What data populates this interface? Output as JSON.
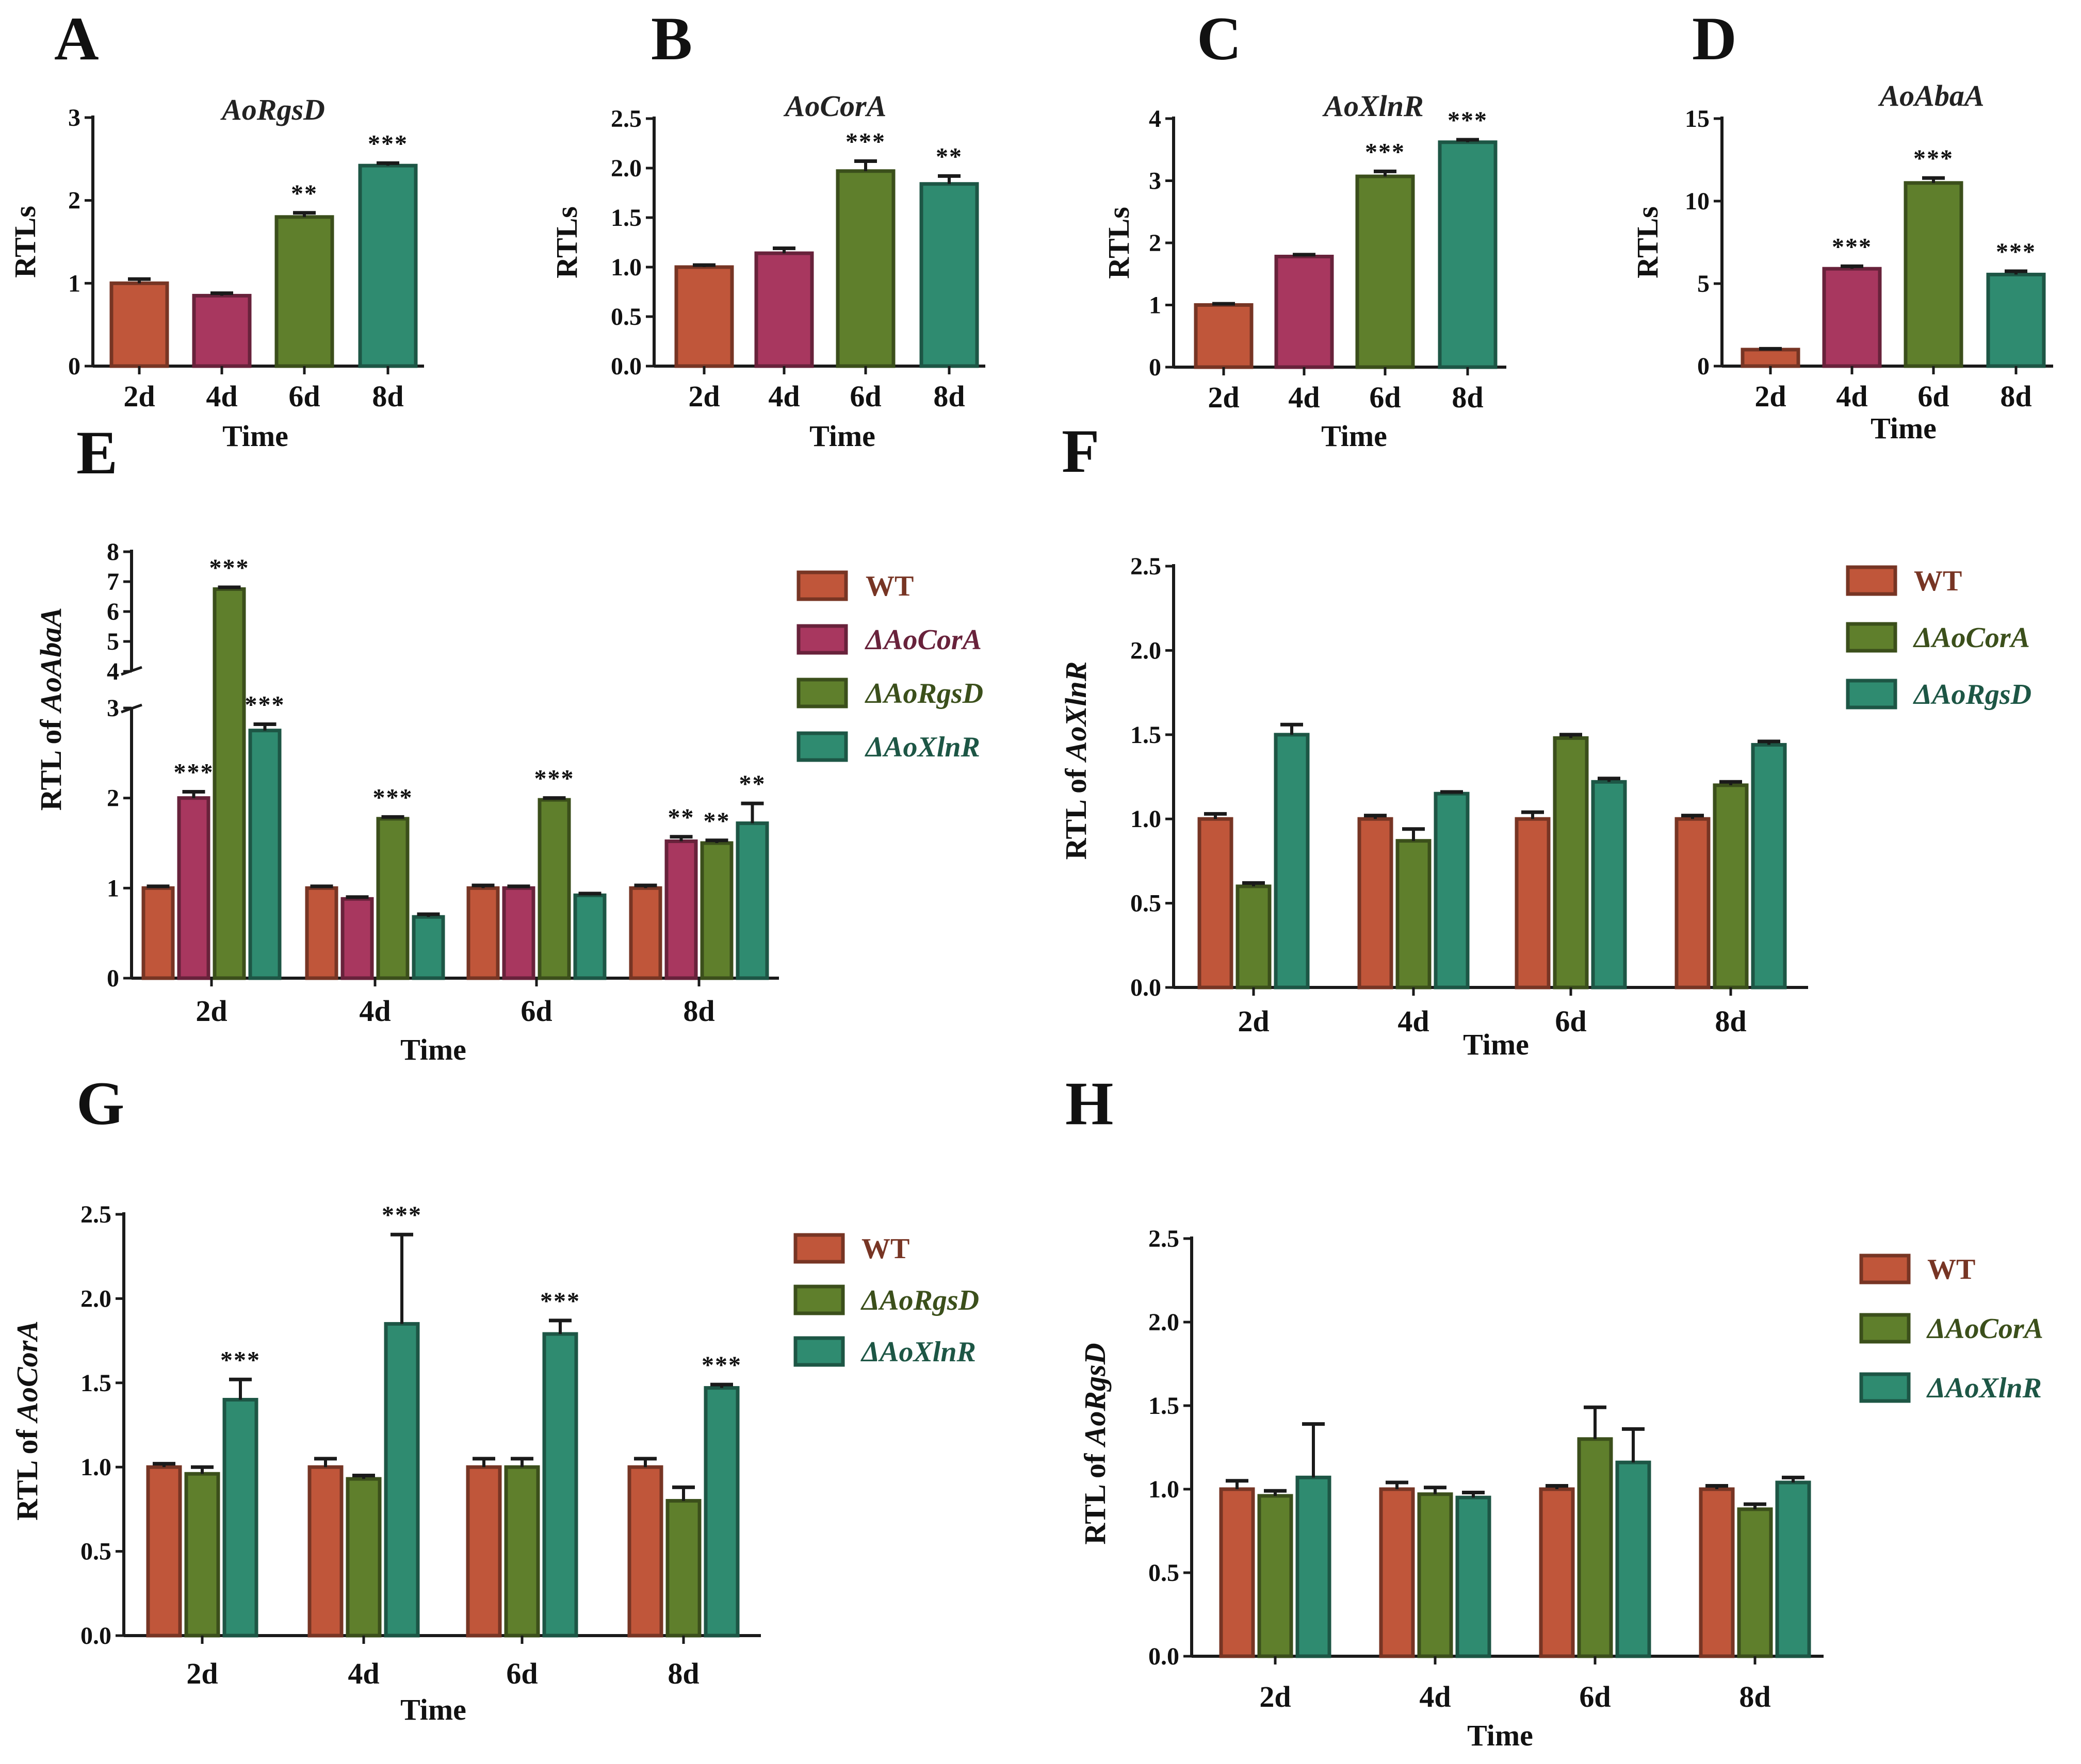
{
  "colors": {
    "WT": "#c0563a",
    "AoCorA_mutant": "#a8375f",
    "AoRgsD_mutant": "#5f7f2c",
    "AoXlnR_mutant": "#2f8b70",
    "axis": "#1a1a1a"
  },
  "chart_data": [
    {
      "id": "A",
      "panel_label": "A",
      "type": "bar",
      "title": "AoRgsD",
      "xlabel": "Time",
      "ylabel": "RTLs",
      "categories": [
        "2d",
        "4d",
        "6d",
        "8d"
      ],
      "ylim": [
        0,
        3
      ],
      "yticks": [
        "0",
        "1",
        "2",
        "3"
      ],
      "values": [
        1.0,
        0.85,
        1.8,
        2.42
      ],
      "errors": [
        0.05,
        0.03,
        0.05,
        0.03
      ],
      "sig": [
        "",
        "",
        "**",
        "***"
      ],
      "bar_colors": [
        "WT",
        "AoCorA_mutant",
        "AoRgsD_mutant",
        "AoXlnR_mutant"
      ]
    },
    {
      "id": "B",
      "panel_label": "B",
      "type": "bar",
      "title": "AoCorA",
      "xlabel": "Time",
      "ylabel": "RTLs",
      "categories": [
        "2d",
        "4d",
        "6d",
        "8d"
      ],
      "ylim": [
        0,
        2.5
      ],
      "yticks": [
        "0.0",
        "0.5",
        "1.0",
        "1.5",
        "2.0",
        "2.5"
      ],
      "values": [
        1.0,
        1.14,
        1.97,
        1.84
      ],
      "errors": [
        0.02,
        0.05,
        0.1,
        0.08
      ],
      "sig": [
        "",
        "",
        "***",
        "**"
      ],
      "bar_colors": [
        "WT",
        "AoCorA_mutant",
        "AoRgsD_mutant",
        "AoXlnR_mutant"
      ]
    },
    {
      "id": "C",
      "panel_label": "C",
      "type": "bar",
      "title": "AoXlnR",
      "xlabel": "Time",
      "ylabel": "RTLs",
      "categories": [
        "2d",
        "4d",
        "6d",
        "8d"
      ],
      "ylim": [
        0,
        4
      ],
      "yticks": [
        "0",
        "1",
        "2",
        "3",
        "4"
      ],
      "values": [
        1.0,
        1.78,
        3.07,
        3.62
      ],
      "errors": [
        0.02,
        0.03,
        0.08,
        0.04
      ],
      "sig": [
        "",
        "",
        "***",
        "***"
      ],
      "bar_colors": [
        "WT",
        "AoCorA_mutant",
        "AoRgsD_mutant",
        "AoXlnR_mutant"
      ]
    },
    {
      "id": "D",
      "panel_label": "D",
      "type": "bar",
      "title": "AoAbaA",
      "xlabel": "Time",
      "ylabel": "RTLs",
      "categories": [
        "2d",
        "4d",
        "6d",
        "8d"
      ],
      "ylim": [
        0,
        15
      ],
      "yticks": [
        "0",
        "5",
        "10",
        "15"
      ],
      "values": [
        1.0,
        5.9,
        11.1,
        5.55
      ],
      "errors": [
        0.05,
        0.15,
        0.3,
        0.2
      ],
      "sig": [
        "",
        "***",
        "***",
        "***"
      ],
      "bar_colors": [
        "WT",
        "AoCorA_mutant",
        "AoRgsD_mutant",
        "AoXlnR_mutant"
      ]
    },
    {
      "id": "E",
      "panel_label": "E",
      "type": "bar",
      "title": "",
      "xlabel": "Time",
      "ylabel_prefix": "RTL of ",
      "ylabel_gene": "AoAbaA",
      "categories": [
        "2d",
        "4d",
        "6d",
        "8d"
      ],
      "ylim": [
        0,
        8
      ],
      "y_break": [
        3,
        4
      ],
      "yticks_lower": [
        "0",
        "1",
        "2",
        "3"
      ],
      "yticks_upper": [
        "4",
        "5",
        "6",
        "7",
        "8"
      ],
      "series": [
        {
          "name": "WT",
          "color": "WT",
          "values": [
            1.0,
            1.0,
            1.0,
            1.0
          ],
          "errors": [
            0.02,
            0.02,
            0.03,
            0.03
          ],
          "sig": [
            "",
            "",
            "",
            ""
          ]
        },
        {
          "name": "ΔAoCorA",
          "color": "AoCorA_mutant",
          "values": [
            2.0,
            0.88,
            1.0,
            1.52
          ],
          "errors": [
            0.07,
            0.02,
            0.02,
            0.05
          ],
          "sig": [
            "***",
            "",
            "",
            "**"
          ]
        },
        {
          "name": "ΔAoRgsD",
          "color": "AoRgsD_mutant",
          "values": [
            6.75,
            1.77,
            1.98,
            1.5
          ],
          "errors": [
            0.06,
            0.02,
            0.02,
            0.03
          ],
          "sig": [
            "***",
            "***",
            "***",
            "**"
          ]
        },
        {
          "name": "ΔAoXlnR",
          "color": "AoXlnR_mutant",
          "values": [
            2.75,
            0.68,
            0.92,
            1.72
          ],
          "errors": [
            0.07,
            0.03,
            0.02,
            0.22
          ],
          "sig": [
            "***",
            "",
            "",
            "**"
          ]
        }
      ],
      "legend": [
        "WT",
        "ΔAoCorA",
        "ΔAoRgsD",
        "ΔAoXlnR"
      ]
    },
    {
      "id": "F",
      "panel_label": "F",
      "type": "bar",
      "title": "",
      "xlabel": "Time",
      "ylabel_prefix": "RTL of ",
      "ylabel_gene": "AoXlnR",
      "categories": [
        "2d",
        "4d",
        "6d",
        "8d"
      ],
      "ylim": [
        0,
        2.5
      ],
      "yticks": [
        "0.0",
        "0.5",
        "1.0",
        "1.5",
        "2.0",
        "2.5"
      ],
      "series": [
        {
          "name": "WT",
          "color": "WT",
          "values": [
            1.0,
            1.0,
            1.0,
            1.0
          ],
          "errors": [
            0.03,
            0.02,
            0.04,
            0.02
          ],
          "sig": [
            "",
            "",
            "",
            ""
          ]
        },
        {
          "name": "ΔAoCorA",
          "color": "AoRgsD_mutant",
          "values": [
            0.6,
            0.87,
            1.48,
            1.2
          ],
          "errors": [
            0.02,
            0.07,
            0.02,
            0.02
          ],
          "sig": [
            "",
            "",
            "",
            ""
          ]
        },
        {
          "name": "ΔAoRgsD",
          "color": "AoXlnR_mutant",
          "values": [
            1.5,
            1.15,
            1.22,
            1.44
          ],
          "errors": [
            0.06,
            0.01,
            0.02,
            0.02
          ],
          "sig": [
            "",
            "",
            "",
            ""
          ]
        }
      ],
      "legend": [
        "WT",
        "ΔAoCorA",
        "ΔAoRgsD"
      ]
    },
    {
      "id": "G",
      "panel_label": "G",
      "type": "bar",
      "title": "",
      "xlabel": "Time",
      "ylabel_prefix": "RTL of ",
      "ylabel_gene": "AoCorA",
      "categories": [
        "2d",
        "4d",
        "6d",
        "8d"
      ],
      "ylim": [
        0,
        2.5
      ],
      "yticks": [
        "0.0",
        "0.5",
        "1.0",
        "1.5",
        "2.0",
        "2.5"
      ],
      "series": [
        {
          "name": "WT",
          "color": "WT",
          "values": [
            1.0,
            1.0,
            1.0,
            1.0
          ],
          "errors": [
            0.02,
            0.05,
            0.05,
            0.05
          ],
          "sig": [
            "",
            "",
            "",
            ""
          ]
        },
        {
          "name": "ΔAoRgsD",
          "color": "AoRgsD_mutant",
          "values": [
            0.96,
            0.93,
            1.0,
            0.8
          ],
          "errors": [
            0.04,
            0.02,
            0.05,
            0.08
          ],
          "sig": [
            "",
            "",
            "",
            ""
          ]
        },
        {
          "name": "ΔAoXlnR",
          "color": "AoXlnR_mutant",
          "values": [
            1.4,
            1.85,
            1.79,
            1.47
          ],
          "errors": [
            0.12,
            0.53,
            0.08,
            0.02
          ],
          "sig": [
            "***",
            "***",
            "***",
            "***"
          ]
        }
      ],
      "legend": [
        "WT",
        "ΔAoRgsD",
        "ΔAoXlnR"
      ]
    },
    {
      "id": "H",
      "panel_label": "H",
      "type": "bar",
      "title": "",
      "xlabel": "Time",
      "ylabel_prefix": "RTL of ",
      "ylabel_gene": "AoRgsD",
      "categories": [
        "2d",
        "4d",
        "6d",
        "8d"
      ],
      "ylim": [
        0,
        2.5
      ],
      "yticks": [
        "0.0",
        "0.5",
        "1.0",
        "1.5",
        "2.0",
        "2.5"
      ],
      "series": [
        {
          "name": "WT",
          "color": "WT",
          "values": [
            1.0,
            1.0,
            1.0,
            1.0
          ],
          "errors": [
            0.05,
            0.04,
            0.02,
            0.02
          ],
          "sig": [
            "",
            "",
            "",
            ""
          ]
        },
        {
          "name": "ΔAoCorA",
          "color": "AoRgsD_mutant",
          "values": [
            0.96,
            0.97,
            1.3,
            0.88
          ],
          "errors": [
            0.03,
            0.04,
            0.19,
            0.03
          ],
          "sig": [
            "",
            "",
            "",
            ""
          ]
        },
        {
          "name": "ΔAoXlnR",
          "color": "AoXlnR_mutant",
          "values": [
            1.07,
            0.95,
            1.16,
            1.04
          ],
          "errors": [
            0.32,
            0.03,
            0.2,
            0.03
          ],
          "sig": [
            "",
            "",
            "",
            ""
          ]
        }
      ],
      "legend": [
        "WT",
        "ΔAoCorA",
        "ΔAoXlnR"
      ]
    }
  ]
}
